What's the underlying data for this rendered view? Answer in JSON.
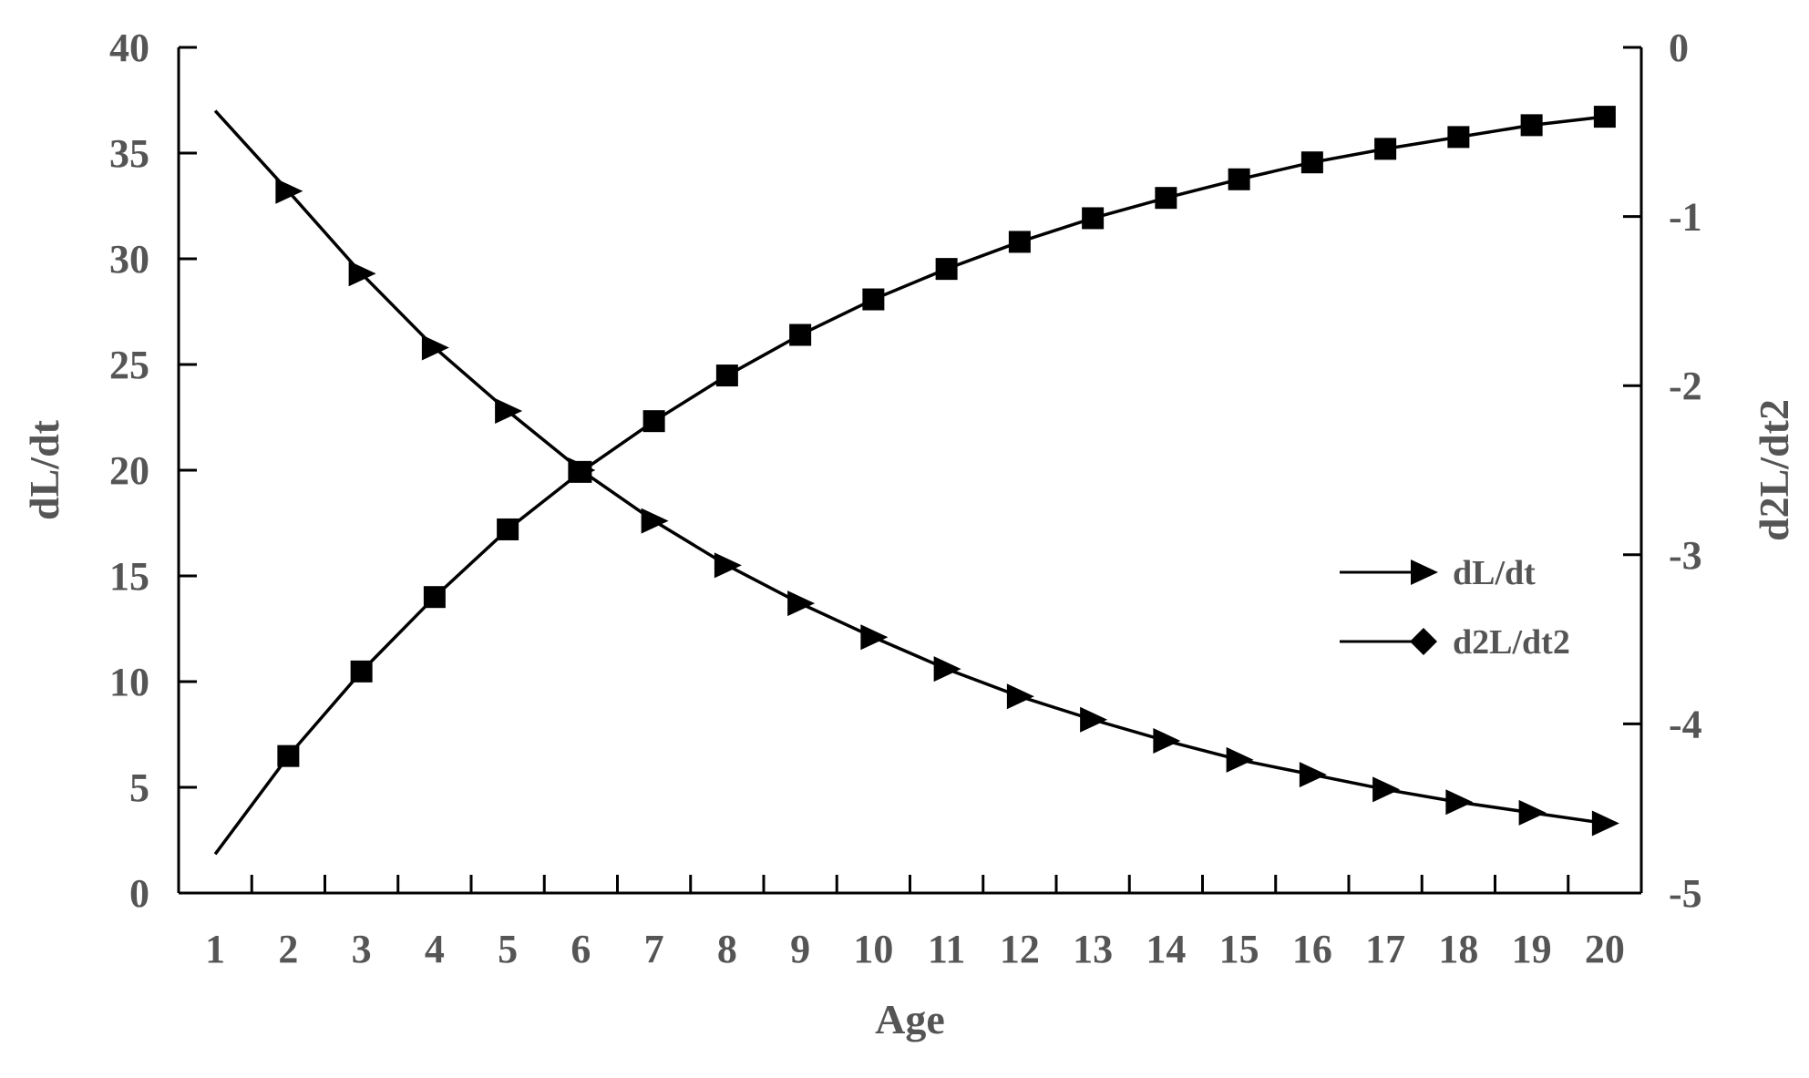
{
  "chart_data": {
    "type": "line",
    "x_axis": {
      "label": "Age",
      "categories": [
        1,
        2,
        3,
        4,
        5,
        6,
        7,
        8,
        9,
        10,
        11,
        12,
        13,
        14,
        15,
        16,
        17,
        18,
        19,
        20
      ],
      "tick_labels": [
        "1",
        "2",
        "3",
        "4",
        "5",
        "6",
        "7",
        "8",
        "9",
        "10",
        "11",
        "12",
        "13",
        "14",
        "15",
        "16",
        "17",
        "18",
        "19",
        "20"
      ]
    },
    "y_left": {
      "label": "dL/dt",
      "ylim": [
        0,
        40
      ],
      "ticks": [
        0,
        5,
        10,
        15,
        20,
        25,
        30,
        35,
        40
      ],
      "tick_labels": [
        "0",
        "5",
        "10",
        "15",
        "20",
        "25",
        "30",
        "35",
        "40"
      ]
    },
    "y_right": {
      "label": "d2L/dt2",
      "ylim": [
        -5,
        0
      ],
      "ticks": [
        0,
        -1,
        -2,
        -3,
        -4,
        -5
      ],
      "tick_labels": [
        "0",
        "-1",
        "-2",
        "-3",
        "-4",
        "-5"
      ]
    },
    "series": [
      {
        "name": "dL/dt",
        "axis": "left",
        "marker": "triangle-right",
        "values": [
          37.0,
          33.2,
          29.3,
          25.8,
          22.8,
          20.0,
          17.6,
          15.5,
          13.7,
          12.1,
          10.6,
          9.3,
          8.2,
          7.2,
          6.3,
          5.6,
          4.9,
          4.3,
          3.8,
          3.3
        ]
      },
      {
        "name": "d2L/dt2",
        "axis": "right",
        "marker": "diamond",
        "values": [
          -4.77,
          -4.19,
          -3.69,
          -3.25,
          -2.85,
          -2.51,
          -2.21,
          -1.94,
          -1.7,
          -1.49,
          -1.31,
          -1.15,
          -1.01,
          -0.89,
          -0.78,
          -0.68,
          -0.6,
          -0.53,
          -0.46,
          -0.41
        ]
      }
    ],
    "legend": {
      "position": "center-right",
      "entries": [
        "dL/dt",
        "d2L/dt2"
      ]
    },
    "grid": false,
    "colors": {
      "line": "#000000",
      "text": "#555555"
    }
  }
}
